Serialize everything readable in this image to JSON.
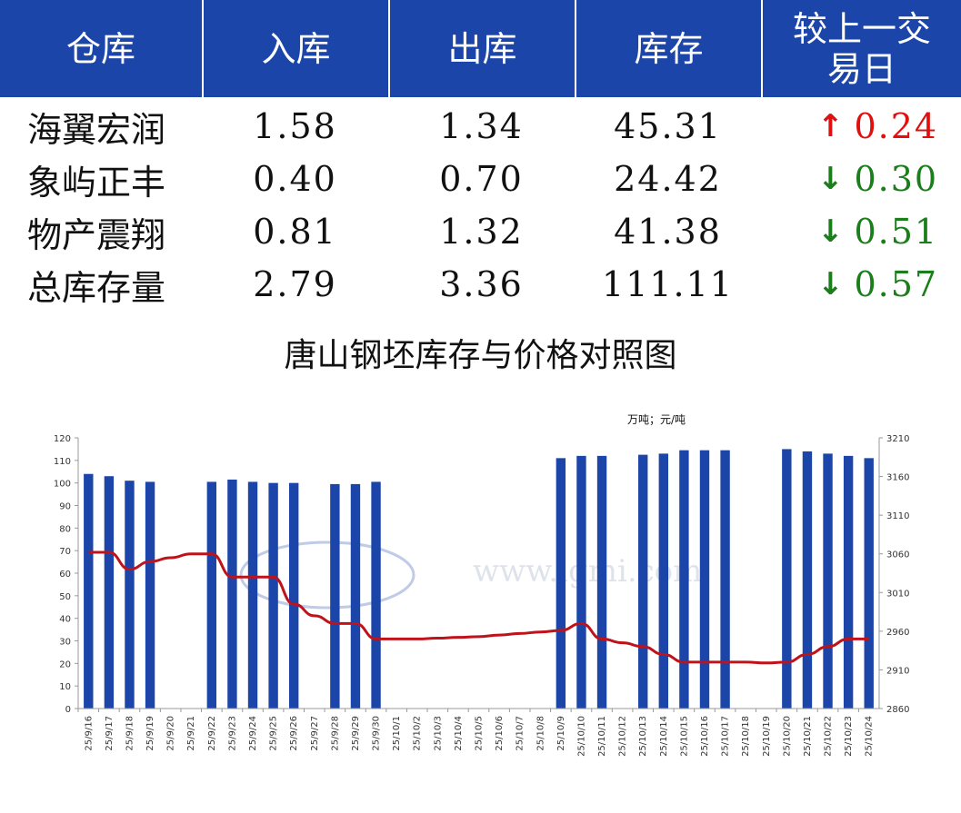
{
  "table": {
    "headers": [
      "仓库",
      "入库",
      "出库",
      "库存",
      "较上一交易日"
    ],
    "rows": [
      {
        "name": "海翼宏润",
        "in": "1.58",
        "out": "1.34",
        "stock": "45.31",
        "dir": "up",
        "arrow": "↑",
        "change": "0.24"
      },
      {
        "name": "象屿正丰",
        "in": "0.40",
        "out": "0.70",
        "stock": "24.42",
        "dir": "down",
        "arrow": "↓",
        "change": "0.30"
      },
      {
        "name": "物产震翔",
        "in": "0.81",
        "out": "1.32",
        "stock": "41.38",
        "dir": "down",
        "arrow": "↓",
        "change": "0.51"
      },
      {
        "name": "总库存量",
        "in": "2.79",
        "out": "3.36",
        "stock": "111.11",
        "dir": "down",
        "arrow": "↓",
        "change": "0.57"
      }
    ]
  },
  "colors": {
    "header_bg": "#1b45a8",
    "bar": "#1b45a8",
    "line": "#c0121a",
    "up": "#e01010",
    "down": "#1a7f1a"
  },
  "chart_data": {
    "type": "bar+line",
    "title": "唐山钢坯库存与价格对照图",
    "unit_label": "万吨；元/吨",
    "watermark": "www.lgmi.com",
    "categories": [
      "25/9/16",
      "25/9/17",
      "25/9/18",
      "25/9/19",
      "25/9/20",
      "25/9/21",
      "25/9/22",
      "25/9/23",
      "25/9/24",
      "25/9/25",
      "25/9/26",
      "25/9/27",
      "25/9/28",
      "25/9/29",
      "25/9/30",
      "25/10/1",
      "25/10/2",
      "25/10/3",
      "25/10/4",
      "25/10/5",
      "25/10/6",
      "25/10/7",
      "25/10/8",
      "25/10/9",
      "25/10/10",
      "25/10/11",
      "25/10/12",
      "25/10/13",
      "25/10/14",
      "25/10/15",
      "25/10/16",
      "25/10/17",
      "25/10/18",
      "25/10/19",
      "25/10/20",
      "25/10/21",
      "25/10/22",
      "25/10/23",
      "25/10/24"
    ],
    "series": [
      {
        "type": "bar",
        "axis": "left",
        "values": [
          104,
          103,
          101,
          100.5,
          null,
          null,
          100.5,
          101.5,
          100.5,
          100,
          100,
          null,
          99.5,
          99.5,
          100.5,
          null,
          null,
          null,
          null,
          null,
          null,
          null,
          null,
          111,
          112,
          112,
          null,
          112.5,
          113,
          114.5,
          114.5,
          114.5,
          null,
          null,
          115,
          114,
          113,
          112,
          111
        ]
      },
      {
        "type": "line",
        "axis": "right",
        "values": [
          3062,
          3062,
          3040,
          3050,
          3055,
          3060,
          3060,
          3030,
          3030,
          3030,
          2995,
          2980,
          2970,
          2970,
          2950,
          2950,
          2950,
          2951,
          2952,
          2953,
          2955,
          2957,
          2959,
          2961,
          2970,
          2950,
          2945,
          2940,
          2930,
          2920,
          2920,
          2920,
          2920,
          2919,
          2920,
          2930,
          2940,
          2950,
          2950
        ]
      }
    ],
    "y_left": {
      "min": 0,
      "max": 120,
      "step": 10
    },
    "y_right": {
      "min": 2860,
      "max": 3210,
      "ticks": [
        2860,
        2910,
        2960,
        3010,
        3060,
        3110,
        3160,
        3210
      ]
    }
  }
}
